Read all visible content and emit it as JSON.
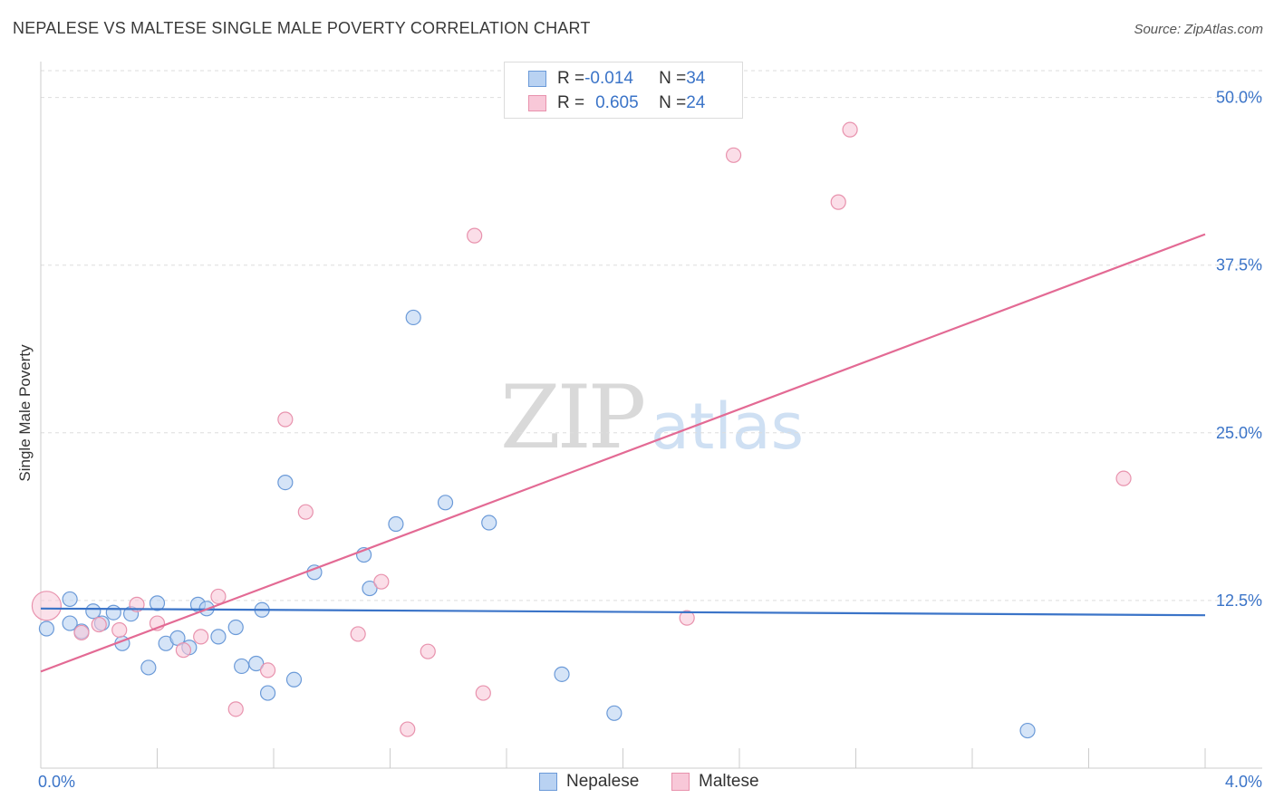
{
  "header": {
    "title": "NEPALESE VS MALTESE SINGLE MALE POVERTY CORRELATION CHART",
    "source": "Source: ZipAtlas.com"
  },
  "legend": {
    "rows": [
      {
        "r_label": "R = ",
        "r_value": "-0.014",
        "n_label": "N = ",
        "n_value": "34"
      },
      {
        "r_label": "R = ",
        "r_value": "0.605",
        "n_label": "N = ",
        "n_value": "24"
      }
    ]
  },
  "watermark": {
    "zip": "ZIP",
    "atlas": "atlas"
  },
  "chart_data": {
    "type": "scatter",
    "title": "NEPALESE VS MALTESE SINGLE MALE POVERTY CORRELATION CHART",
    "xlabel": "",
    "ylabel": "Single Male Poverty",
    "xlim": [
      0.0,
      4.0
    ],
    "ylim": [
      0.0,
      52.0
    ],
    "x_tick_labels": [
      "0.0%",
      "4.0%"
    ],
    "y_ticks": [
      12.5,
      25.0,
      37.5,
      50.0
    ],
    "y_tick_labels": [
      "12.5%",
      "25.0%",
      "37.5%",
      "50.0%"
    ],
    "grid": true,
    "series": [
      {
        "name": "Nepalese",
        "color": "#6b9ad8",
        "fill": "#b9d2f2",
        "line_color": "#3b74c8",
        "trend": [
          [
            0.0,
            11.9
          ],
          [
            4.0,
            11.4
          ]
        ],
        "points": [
          [
            0.02,
            10.4
          ],
          [
            0.1,
            10.8
          ],
          [
            0.1,
            12.6
          ],
          [
            0.14,
            10.2
          ],
          [
            0.18,
            11.7
          ],
          [
            0.21,
            10.8
          ],
          [
            0.25,
            11.6
          ],
          [
            0.28,
            9.3
          ],
          [
            0.31,
            11.5
          ],
          [
            0.37,
            7.5
          ],
          [
            0.4,
            12.3
          ],
          [
            0.43,
            9.3
          ],
          [
            0.47,
            9.7
          ],
          [
            0.51,
            9.0
          ],
          [
            0.54,
            12.2
          ],
          [
            0.57,
            11.9
          ],
          [
            0.61,
            9.8
          ],
          [
            0.67,
            10.5
          ],
          [
            0.69,
            7.6
          ],
          [
            0.74,
            7.8
          ],
          [
            0.76,
            11.8
          ],
          [
            0.78,
            5.6
          ],
          [
            0.84,
            21.3
          ],
          [
            0.87,
            6.6
          ],
          [
            0.94,
            14.6
          ],
          [
            1.11,
            15.9
          ],
          [
            1.13,
            13.4
          ],
          [
            1.22,
            18.2
          ],
          [
            1.28,
            33.6
          ],
          [
            1.39,
            19.8
          ],
          [
            1.54,
            18.3
          ],
          [
            1.79,
            7.0
          ],
          [
            1.97,
            4.1
          ],
          [
            3.39,
            2.8
          ]
        ]
      },
      {
        "name": "Maltese",
        "color": "#e892ad",
        "fill": "#f8c8d8",
        "line_color": "#e36a94",
        "trend": [
          [
            0.0,
            7.2
          ],
          [
            4.0,
            39.8
          ]
        ],
        "points": [
          [
            0.02,
            12.1
          ],
          [
            0.14,
            10.1
          ],
          [
            0.2,
            10.7
          ],
          [
            0.27,
            10.3
          ],
          [
            0.33,
            12.2
          ],
          [
            0.4,
            10.8
          ],
          [
            0.49,
            8.8
          ],
          [
            0.55,
            9.8
          ],
          [
            0.61,
            12.8
          ],
          [
            0.67,
            4.4
          ],
          [
            0.78,
            7.3
          ],
          [
            0.84,
            26.0
          ],
          [
            0.91,
            19.1
          ],
          [
            1.09,
            10.0
          ],
          [
            1.17,
            13.9
          ],
          [
            1.26,
            2.9
          ],
          [
            1.33,
            8.7
          ],
          [
            1.49,
            39.7
          ],
          [
            1.52,
            5.6
          ],
          [
            2.22,
            11.2
          ],
          [
            2.38,
            45.7
          ],
          [
            2.74,
            42.2
          ],
          [
            2.78,
            47.6
          ],
          [
            3.72,
            21.6
          ]
        ]
      }
    ]
  }
}
